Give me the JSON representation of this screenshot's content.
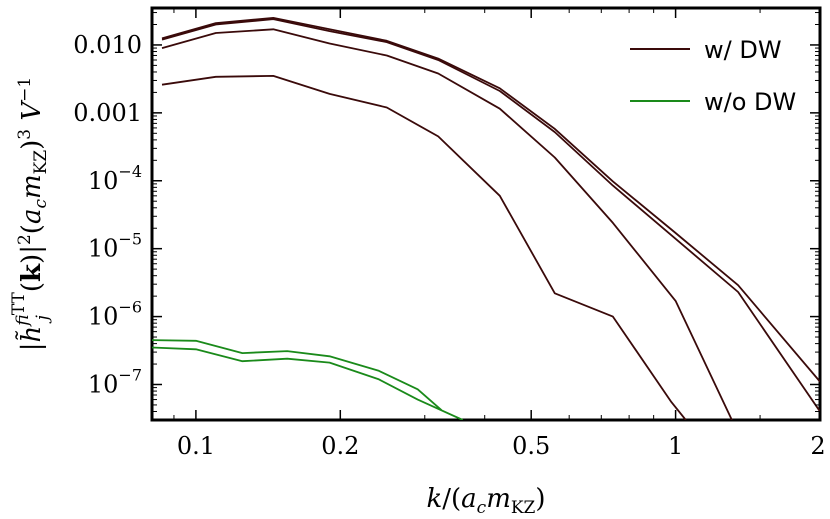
{
  "chart_data": {
    "type": "line",
    "xscale": "log",
    "yscale": "log",
    "xlim": [
      0.081,
      2.0
    ],
    "ylim": [
      3e-08,
      0.035
    ],
    "xlabel": "k/(a_c m_KZ)",
    "ylabel": "|h̃^f_ij^TT(k)|^2 (a_c m_KZ)^3 V^-1",
    "xticks": [
      {
        "value": 0.1,
        "label": "0.1"
      },
      {
        "value": 0.2,
        "label": "0.2"
      },
      {
        "value": 0.5,
        "label": "0.5"
      },
      {
        "value": 1,
        "label": "1"
      },
      {
        "value": 2,
        "label": "2"
      }
    ],
    "yticks": [
      {
        "value": 0.01,
        "label": "0.010"
      },
      {
        "value": 0.001,
        "label": "0.001"
      },
      {
        "value": 0.0001,
        "mant": "10",
        "exp": "−4"
      },
      {
        "value": 1e-05,
        "mant": "10",
        "exp": "−5"
      },
      {
        "value": 1e-06,
        "mant": "10",
        "exp": "−6"
      },
      {
        "value": 1e-07,
        "mant": "10",
        "exp": "−7"
      }
    ],
    "grid": false,
    "legend_position": "top-right",
    "legend": [
      {
        "label": "w/ DW",
        "color": "#3a0a0a"
      },
      {
        "label": "w/o DW",
        "color": "#1a8a1a"
      }
    ],
    "series": [
      {
        "group": "w/ DW",
        "color": "#3a0a0a",
        "x": [
          0.085,
          0.11,
          0.145,
          0.19,
          0.25,
          0.32,
          0.43,
          0.56,
          0.74,
          1.0,
          1.35,
          2.0
        ],
        "y": [
          0.0125,
          0.021,
          0.025,
          0.017,
          0.0115,
          0.0063,
          0.0023,
          0.00058,
          9.8e-05,
          1.7e-05,
          2.9e-06,
          1.1e-07
        ]
      },
      {
        "group": "w/ DW",
        "color": "#3a0a0a",
        "x": [
          0.085,
          0.11,
          0.145,
          0.19,
          0.25,
          0.32,
          0.43,
          0.56,
          0.74,
          1.0,
          1.35,
          2.0
        ],
        "y": [
          0.012,
          0.02,
          0.024,
          0.016,
          0.011,
          0.006,
          0.0021,
          0.00052,
          8.5e-05,
          1.4e-05,
          2.3e-06,
          4e-08
        ]
      },
      {
        "group": "w/ DW",
        "color": "#3a0a0a",
        "x": [
          0.085,
          0.11,
          0.145,
          0.19,
          0.25,
          0.32,
          0.43,
          0.56,
          0.74,
          1.0,
          1.31
        ],
        "y": [
          0.009,
          0.015,
          0.017,
          0.0105,
          0.007,
          0.0038,
          0.00115,
          0.00022,
          2.4e-05,
          1.7e-06,
          3e-08
        ]
      },
      {
        "group": "w/ DW",
        "color": "#3a0a0a",
        "x": [
          0.085,
          0.11,
          0.145,
          0.19,
          0.25,
          0.32,
          0.43,
          0.56,
          0.74,
          0.98,
          1.05
        ],
        "y": [
          0.0026,
          0.0034,
          0.0035,
          0.0019,
          0.0012,
          0.00045,
          6e-05,
          2.2e-06,
          1e-06,
          5.5e-08,
          3e-08
        ]
      },
      {
        "group": "w/o DW",
        "color": "#1a8a1a",
        "x": [
          0.081,
          0.1,
          0.125,
          0.155,
          0.19,
          0.24,
          0.29,
          0.325
        ],
        "y": [
          4.5e-07,
          4.4e-07,
          2.9e-07,
          3.1e-07,
          2.6e-07,
          1.6e-07,
          8.5e-08,
          4.2e-08
        ]
      },
      {
        "group": "w/o DW",
        "color": "#1a8a1a",
        "x": [
          0.081,
          0.1,
          0.125,
          0.155,
          0.19,
          0.24,
          0.29,
          0.36
        ],
        "y": [
          3.5e-07,
          3.3e-07,
          2.2e-07,
          2.4e-07,
          2.1e-07,
          1.2e-07,
          6e-08,
          3e-08
        ]
      }
    ]
  }
}
